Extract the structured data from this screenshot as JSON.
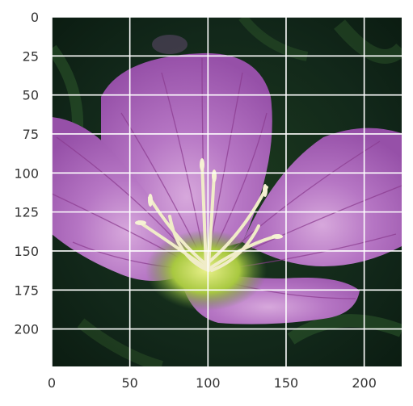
{
  "chart_data": {
    "type": "image",
    "title": "",
    "xlabel": "",
    "ylabel": "",
    "xlim": [
      0,
      224
    ],
    "ylim": [
      224,
      0
    ],
    "grid": true,
    "x_ticks": [
      {
        "value": 0,
        "label": "0"
      },
      {
        "value": 50,
        "label": "50"
      },
      {
        "value": 100,
        "label": "100"
      },
      {
        "value": 150,
        "label": "150"
      },
      {
        "value": 200,
        "label": "200"
      }
    ],
    "y_ticks": [
      {
        "value": 0,
        "label": "0"
      },
      {
        "value": 25,
        "label": "25"
      },
      {
        "value": 50,
        "label": "50"
      },
      {
        "value": 75,
        "label": "75"
      },
      {
        "value": 100,
        "label": "100"
      },
      {
        "value": 125,
        "label": "125"
      },
      {
        "value": 150,
        "label": "150"
      },
      {
        "value": 175,
        "label": "175"
      },
      {
        "value": 200,
        "label": "200"
      }
    ],
    "image_subject": "pink-flower-photo",
    "colors": {
      "background_foliage": "#0f2414",
      "petal": "#b06cc0",
      "petal_vein": "#8a3a8e",
      "flower_center": "#c8d84a",
      "stamen": "#f0ecc8",
      "grid": "#ffffff",
      "tick_text": "#333333"
    }
  }
}
